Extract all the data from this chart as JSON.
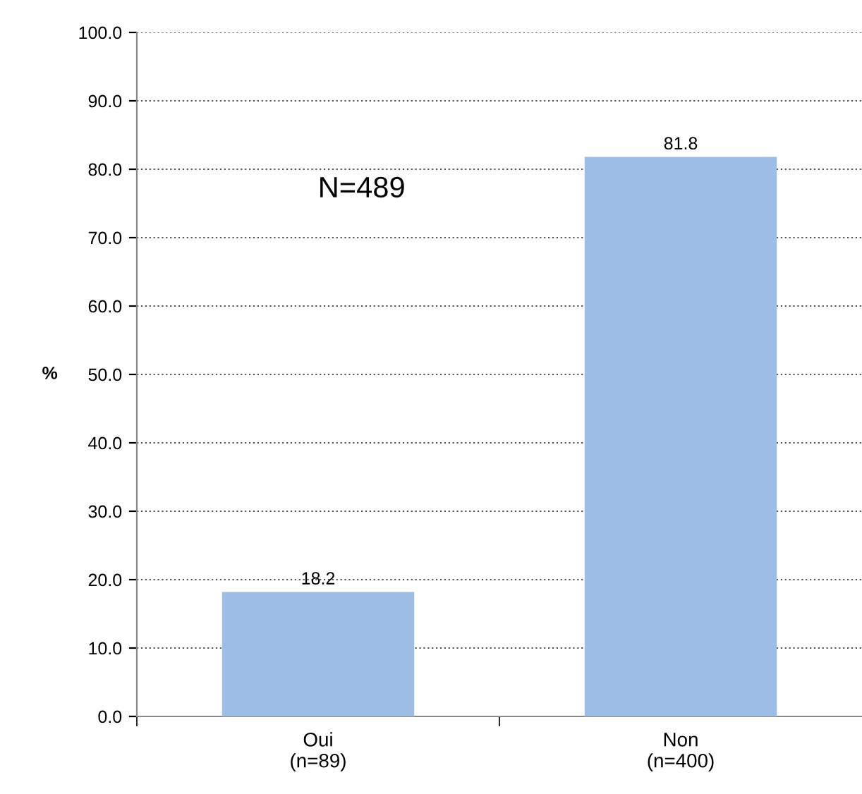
{
  "chart_data": {
    "type": "bar",
    "categories": [
      "Oui\n(n=89)",
      "Non\n(n=400)"
    ],
    "values": [
      18.2,
      81.8
    ],
    "color": "#9dbde6",
    "ylabel": "%",
    "ylim": [
      0,
      100
    ],
    "yticks": [
      {
        "value": 0,
        "label": "0.0"
      },
      {
        "value": 10,
        "label": "10.0"
      },
      {
        "value": 20,
        "label": "20.0"
      },
      {
        "value": 30,
        "label": "30.0"
      },
      {
        "value": 40,
        "label": "40.0"
      },
      {
        "value": 50,
        "label": "50.0"
      },
      {
        "value": 60,
        "label": "60.0"
      },
      {
        "value": 70,
        "label": "70.0"
      },
      {
        "value": 80,
        "label": "80.0"
      },
      {
        "value": 90,
        "label": "90.0"
      },
      {
        "value": 100,
        "label": "100.0"
      }
    ],
    "grid": "y",
    "data_labels": true,
    "annotations": [
      "N=489"
    ]
  }
}
